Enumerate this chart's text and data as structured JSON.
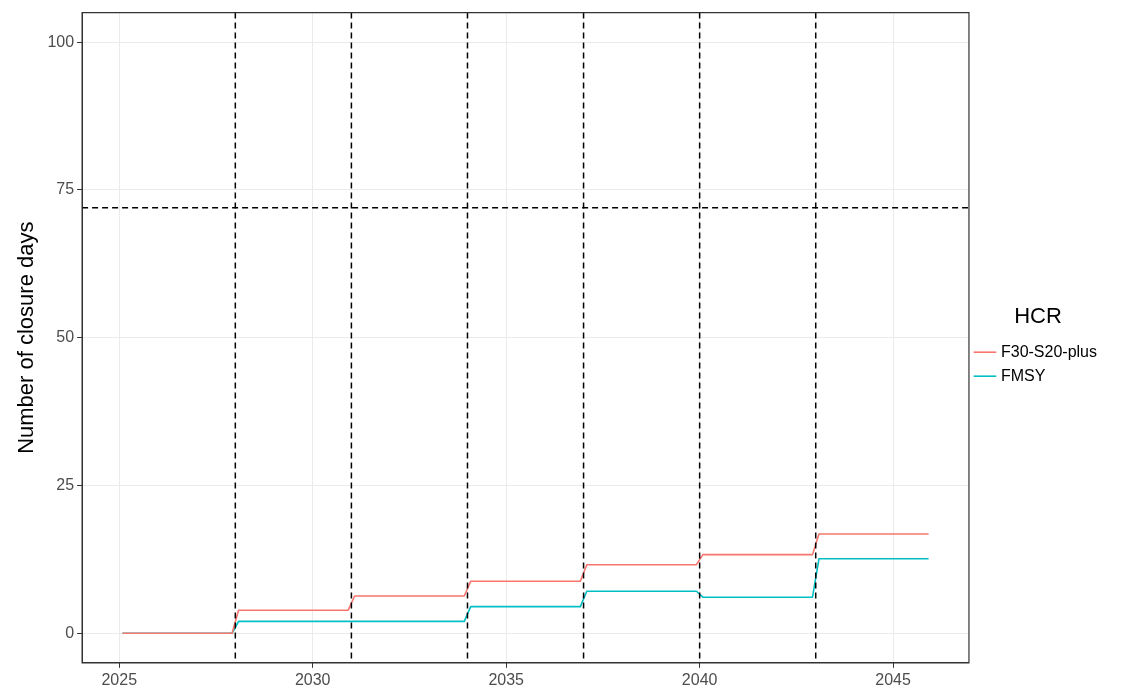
{
  "chart_data": {
    "type": "line",
    "ylabel": "Number of closure days",
    "legend_title": "HCR",
    "legend": "right",
    "grid": true,
    "marker": "none",
    "line_style": "solid",
    "xlim": [
      2024.04,
      2046.96
    ],
    "xticks": [
      2025,
      2030,
      2035,
      2040,
      2045
    ],
    "ylim": [
      -5,
      105
    ],
    "yticks": [
      0,
      25,
      50,
      75,
      100
    ],
    "x": [
      2025.083,
      2027.917,
      2028.083,
      2030.917,
      2031.083,
      2033.917,
      2034.083,
      2036.917,
      2037.083,
      2039.917,
      2040.083,
      2042.917,
      2043.083,
      2045.917
    ],
    "series": [
      {
        "name": "F30-S20-plus",
        "color": "#f8766d",
        "values": [
          0,
          0,
          3.9,
          3.9,
          6.3,
          6.3,
          8.8,
          8.8,
          11.6,
          11.6,
          13.3,
          13.3,
          16.8,
          16.8
        ]
      },
      {
        "name": "FMSY",
        "color": "#00bfc4",
        "values": [
          0,
          0,
          2.0,
          2.0,
          2.0,
          2.0,
          4.5,
          4.5,
          7.1,
          7.1,
          6.1,
          6.1,
          12.6,
          12.6
        ]
      }
    ],
    "ref_lines": [
      {
        "axis": "y",
        "value": 72,
        "color": "#000000",
        "line_style": "dashed"
      },
      {
        "axis": "x",
        "value": 2028,
        "color": "#000000",
        "line_style": "dashed"
      },
      {
        "axis": "x",
        "value": 2031,
        "color": "#000000",
        "line_style": "dashed"
      },
      {
        "axis": "x",
        "value": 2034,
        "color": "#000000",
        "line_style": "dashed"
      },
      {
        "axis": "x",
        "value": 2037,
        "color": "#000000",
        "line_style": "dashed"
      },
      {
        "axis": "x",
        "value": 2040,
        "color": "#000000",
        "line_style": "dashed"
      },
      {
        "axis": "x",
        "value": 2043,
        "color": "#000000",
        "line_style": "dashed"
      }
    ]
  }
}
